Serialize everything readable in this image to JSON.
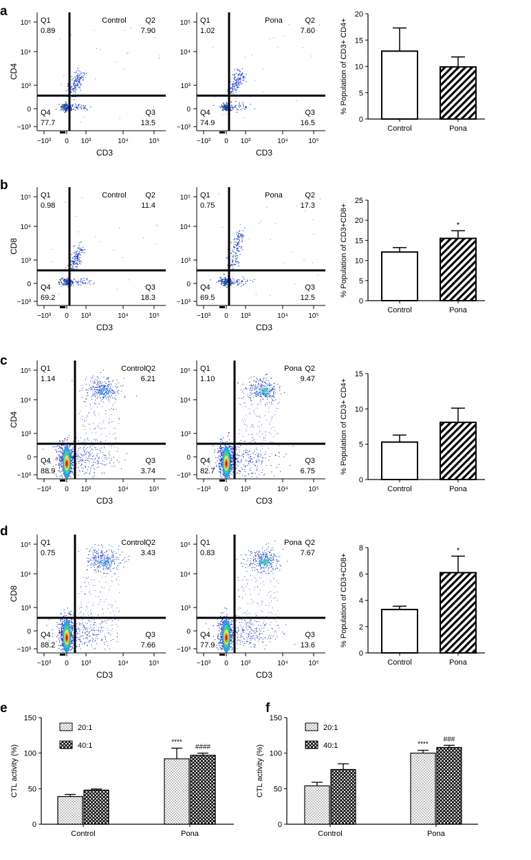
{
  "panel_letters": [
    "a",
    "b",
    "c",
    "d",
    "e",
    "f"
  ],
  "colors": {
    "black": "#000000",
    "white": "#ffffff",
    "density": [
      "#1a2fd0",
      "#2a9ee8",
      "#39d39a",
      "#f2e530",
      "#f48020",
      "#d81d1d"
    ]
  },
  "flow": {
    "xlabel": "CD3",
    "x_ticks": [
      "−10³",
      "0",
      "10³",
      "10⁴",
      "10⁵"
    ],
    "y_ticks": [
      "10⁵",
      "10⁴",
      "10³",
      "0",
      "−10³"
    ],
    "quadrant_names": [
      "Q1",
      "Q2",
      "Q3",
      "Q4"
    ],
    "plots": [
      {
        "panel": "a",
        "group": "Control",
        "ylabel": "CD4",
        "q1": "0.89",
        "q2": "7.90",
        "q3": "13.5",
        "q4": "77.7"
      },
      {
        "panel": "a",
        "group": "Pona",
        "ylabel": "CD4",
        "q1": "1.02",
        "q2": "7.60",
        "q3": "16.5",
        "q4": "74.9"
      },
      {
        "panel": "b",
        "group": "Control",
        "ylabel": "CD8",
        "q1": "0.98",
        "q2": "11.4",
        "q3": "18.3",
        "q4": "69.2"
      },
      {
        "panel": "b",
        "group": "Pona",
        "ylabel": "CD8",
        "q1": "0.75",
        "q2": "17.3",
        "q3": "12.5",
        "q4": "69.5"
      },
      {
        "panel": "c",
        "group": "Control",
        "ylabel": "CD4",
        "q1": "1.14",
        "q2": "6.21",
        "q3": "3.74",
        "q4": "88.9"
      },
      {
        "panel": "c",
        "group": "Pona",
        "ylabel": "CD4",
        "q1": "1.10",
        "q2": "9.47",
        "q3": "6.75",
        "q4": "82.7"
      },
      {
        "panel": "d",
        "group": "Control",
        "ylabel": "CD8",
        "q1": "0.75",
        "q2": "3.43",
        "q3": "7.66",
        "q4": "88.2"
      },
      {
        "panel": "d",
        "group": "Pona",
        "ylabel": "CD8",
        "q1": "0.83",
        "q2": "7.67",
        "q3": "13.6",
        "q4": "77.9"
      }
    ]
  },
  "chart_data": [
    {
      "panel": "a",
      "type": "bar",
      "ylabel": "% Population of CD3+ CD4+",
      "categories": [
        "Control",
        "Pona"
      ],
      "values": [
        12.9,
        9.9
      ],
      "errors": [
        4.4,
        1.9
      ],
      "ylim": [
        0,
        20
      ],
      "yticks": [
        0,
        5,
        10,
        15,
        20
      ],
      "annotations": [
        "",
        ""
      ]
    },
    {
      "panel": "b",
      "type": "bar",
      "ylabel": "% Population of CD3+CD8+",
      "categories": [
        "Control",
        "Pona"
      ],
      "values": [
        12.1,
        15.5
      ],
      "errors": [
        1.1,
        1.9
      ],
      "ylim": [
        0,
        25
      ],
      "yticks": [
        0,
        5,
        10,
        15,
        20,
        25
      ],
      "annotations": [
        "",
        "*"
      ]
    },
    {
      "panel": "c",
      "type": "bar",
      "ylabel": "% Population of CD3+ CD4+",
      "categories": [
        "Control",
        "Pona"
      ],
      "values": [
        5.3,
        8.1
      ],
      "errors": [
        1.0,
        2.0
      ],
      "ylim": [
        0,
        15
      ],
      "yticks": [
        0,
        5,
        10,
        15
      ],
      "annotations": [
        "",
        ""
      ]
    },
    {
      "panel": "d",
      "type": "bar",
      "ylabel": "% Population of CD3+CD8+",
      "categories": [
        "Control",
        "Pona"
      ],
      "values": [
        3.3,
        6.1
      ],
      "errors": [
        0.25,
        1.25
      ],
      "ylim": [
        0,
        8
      ],
      "yticks": [
        0,
        2,
        4,
        6,
        8
      ],
      "annotations": [
        "",
        "*"
      ]
    },
    {
      "panel": "e",
      "type": "bar",
      "ylabel": "CTL activity (%)",
      "categories": [
        "Control",
        "Pona"
      ],
      "ylim": [
        0,
        150
      ],
      "yticks": [
        0,
        50,
        100,
        150
      ],
      "series": [
        {
          "name": "20:1",
          "values": [
            39,
            92
          ],
          "errors": [
            3,
            15
          ],
          "annotations": [
            "",
            "****"
          ]
        },
        {
          "name": "40:1",
          "values": [
            48,
            97
          ],
          "errors": [
            1.5,
            3
          ],
          "annotations": [
            "",
            "####"
          ]
        }
      ]
    },
    {
      "panel": "f",
      "type": "bar",
      "ylabel": "CTL activity (%)",
      "categories": [
        "Control",
        "Pona"
      ],
      "ylim": [
        0,
        150
      ],
      "yticks": [
        0,
        50,
        100,
        150
      ],
      "series": [
        {
          "name": "20:1",
          "values": [
            54,
            100
          ],
          "errors": [
            5,
            4
          ],
          "annotations": [
            "",
            "****"
          ]
        },
        {
          "name": "40:1",
          "values": [
            77,
            108
          ],
          "errors": [
            8,
            3
          ],
          "annotations": [
            "",
            "###"
          ]
        }
      ]
    }
  ]
}
